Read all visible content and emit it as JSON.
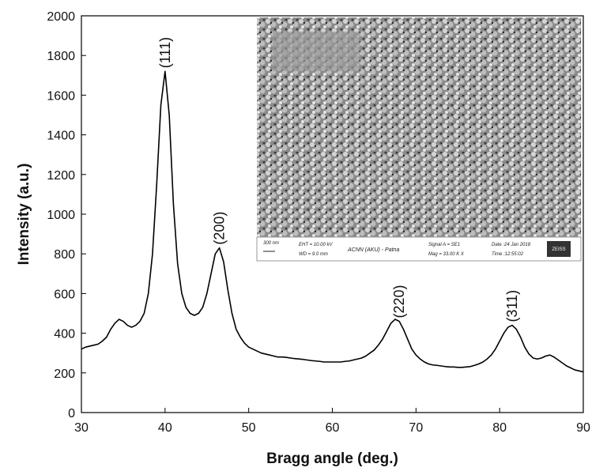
{
  "chart_data": {
    "type": "line",
    "xlabel": "Bragg angle (deg.)",
    "ylabel": "Intensity (a.u.)",
    "xlim": [
      30,
      90
    ],
    "ylim": [
      0,
      2000
    ],
    "xticks": [
      30,
      40,
      50,
      60,
      70,
      80,
      90
    ],
    "yticks": [
      0,
      200,
      400,
      600,
      800,
      1000,
      1200,
      1400,
      1600,
      1800,
      2000
    ],
    "series": [
      {
        "color": "#000000",
        "x": [
          30,
          30.5,
          31,
          31.5,
          32,
          32.5,
          33,
          33.5,
          34,
          34.5,
          35,
          35.5,
          36,
          36.5,
          37,
          37.5,
          38,
          38.5,
          39,
          39.5,
          40,
          40.5,
          41,
          41.5,
          42,
          42.5,
          43,
          43.5,
          44,
          44.5,
          45,
          45.5,
          46,
          46.5,
          47,
          47.5,
          48,
          48.5,
          49,
          49.5,
          50,
          50.5,
          51,
          51.5,
          52,
          52.5,
          53,
          53.5,
          54,
          54.5,
          55,
          55.5,
          56,
          56.5,
          57,
          57.5,
          58,
          58.5,
          59,
          59.5,
          60,
          60.5,
          61,
          61.5,
          62,
          62.5,
          63,
          63.5,
          64,
          64.5,
          65,
          65.5,
          66,
          66.5,
          67,
          67.5,
          68,
          68.5,
          69,
          69.5,
          70,
          70.5,
          71,
          71.5,
          72,
          72.5,
          73,
          73.5,
          74,
          74.5,
          75,
          75.5,
          76,
          76.5,
          77,
          77.5,
          78,
          78.5,
          79,
          79.5,
          80,
          80.5,
          81,
          81.5,
          82,
          82.5,
          83,
          83.5,
          84,
          84.5,
          85,
          85.5,
          86,
          86.5,
          87,
          87.5,
          88,
          88.5,
          89,
          89.5,
          90
        ],
        "values": [
          320,
          330,
          335,
          340,
          345,
          360,
          380,
          420,
          450,
          470,
          460,
          440,
          430,
          440,
          460,
          500,
          600,
          800,
          1150,
          1550,
          1720,
          1500,
          1050,
          750,
          600,
          530,
          500,
          490,
          500,
          530,
          600,
          700,
          800,
          830,
          760,
          620,
          500,
          420,
          380,
          350,
          330,
          320,
          310,
          300,
          295,
          290,
          285,
          280,
          280,
          278,
          275,
          272,
          270,
          268,
          265,
          262,
          260,
          258,
          255,
          255,
          255,
          255,
          255,
          258,
          260,
          265,
          270,
          275,
          285,
          300,
          315,
          340,
          370,
          410,
          450,
          470,
          460,
          420,
          370,
          320,
          290,
          270,
          255,
          245,
          240,
          238,
          235,
          232,
          230,
          230,
          228,
          228,
          230,
          232,
          238,
          245,
          255,
          270,
          290,
          320,
          360,
          400,
          430,
          440,
          420,
          380,
          330,
          295,
          275,
          270,
          275,
          285,
          290,
          280,
          265,
          250,
          235,
          225,
          215,
          210,
          205
        ]
      }
    ],
    "annotations": [
      {
        "text": "(111)",
        "x": 40
      },
      {
        "text": "(200)",
        "x": 46.5
      },
      {
        "text": "(220)",
        "x": 68
      },
      {
        "text": "(311)",
        "x": 81.5
      }
    ],
    "inset": {
      "scale": "300 nm",
      "eht": "EHT = 10.00 kV",
      "wd": "WD = 9.0 mm",
      "lab": "ACNN (AKU) - Patna",
      "signal": "Signal A = SE1",
      "mag": "Mag = 33.00 K X",
      "date": "Date :24 Jan 2018",
      "time": "Time :12:55:02",
      "logo": "ZEISS"
    }
  }
}
